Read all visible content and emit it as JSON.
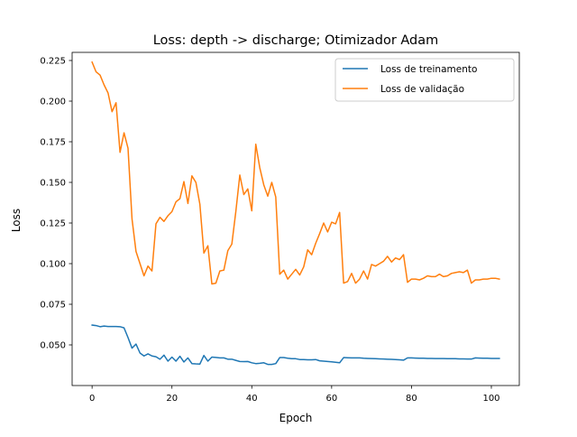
{
  "chart_data": {
    "type": "line",
    "title": "Loss: depth -> discharge; Otimizador Adam",
    "xlabel": "Epoch",
    "ylabel": "Loss",
    "xlim": [
      -5,
      107
    ],
    "ylim": [
      0.025,
      0.23
    ],
    "x_ticks": [
      0,
      20,
      40,
      60,
      80,
      100
    ],
    "y_ticks": [
      0.05,
      0.075,
      0.1,
      0.125,
      0.15,
      0.175,
      0.2,
      0.225
    ],
    "y_tick_format_decimals": 3,
    "grid": false,
    "legend_position": "top-right",
    "series": [
      {
        "name": "Loss de treinamento",
        "color": "#1f77b4",
        "x": [
          0,
          1,
          2,
          3,
          4,
          5,
          6,
          7,
          8,
          9,
          10,
          11,
          12,
          13,
          14,
          15,
          16,
          17,
          18,
          19,
          20,
          21,
          22,
          23,
          24,
          25,
          26,
          27,
          28,
          29,
          30,
          31,
          32,
          33,
          34,
          35,
          36,
          37,
          38,
          39,
          40,
          41,
          42,
          43,
          44,
          45,
          46,
          47,
          48,
          49,
          50,
          51,
          52,
          53,
          54,
          55,
          56,
          57,
          58,
          59,
          60,
          61,
          62,
          63,
          64,
          65,
          66,
          67,
          68,
          69,
          70,
          71,
          72,
          73,
          74,
          75,
          76,
          77,
          78,
          79,
          80,
          81,
          82,
          83,
          84,
          85,
          86,
          87,
          88,
          89,
          90,
          91,
          92,
          93,
          94,
          95,
          96,
          97,
          98,
          99,
          100,
          101,
          102
        ],
        "y": [
          0.0622,
          0.0619,
          0.0612,
          0.0616,
          0.0613,
          0.0613,
          0.0613,
          0.0612,
          0.0605,
          0.0545,
          0.048,
          0.0505,
          0.045,
          0.0432,
          0.0445,
          0.0432,
          0.0427,
          0.0412,
          0.0437,
          0.04,
          0.0425,
          0.04,
          0.043,
          0.0395,
          0.042,
          0.0385,
          0.0383,
          0.0382,
          0.0435,
          0.04,
          0.0425,
          0.0423,
          0.042,
          0.042,
          0.0412,
          0.0412,
          0.0405,
          0.0398,
          0.0397,
          0.0398,
          0.039,
          0.0385,
          0.0387,
          0.039,
          0.038,
          0.038,
          0.0385,
          0.0422,
          0.0422,
          0.0418,
          0.0415,
          0.0415,
          0.041,
          0.041,
          0.0408,
          0.0408,
          0.041,
          0.0402,
          0.04,
          0.0398,
          0.0396,
          0.0393,
          0.039,
          0.0422,
          0.0421,
          0.042,
          0.042,
          0.042,
          0.0418,
          0.0417,
          0.0416,
          0.0415,
          0.0414,
          0.0413,
          0.0412,
          0.0411,
          0.041,
          0.0408,
          0.0406,
          0.042,
          0.042,
          0.0419,
          0.0418,
          0.0418,
          0.0417,
          0.0417,
          0.0416,
          0.0416,
          0.0416,
          0.0415,
          0.0415,
          0.0415,
          0.0414,
          0.0414,
          0.0413,
          0.0413,
          0.042,
          0.0419,
          0.0418,
          0.0418,
          0.0417,
          0.0417,
          0.0417
        ]
      },
      {
        "name": "Loss de validação",
        "color": "#ff7f0e",
        "x": [
          0,
          1,
          2,
          3,
          4,
          5,
          6,
          7,
          8,
          9,
          10,
          11,
          12,
          13,
          14,
          15,
          16,
          17,
          18,
          19,
          20,
          21,
          22,
          23,
          24,
          25,
          26,
          27,
          28,
          29,
          30,
          31,
          32,
          33,
          34,
          35,
          36,
          37,
          38,
          39,
          40,
          41,
          42,
          43,
          44,
          45,
          46,
          47,
          48,
          49,
          50,
          51,
          52,
          53,
          54,
          55,
          56,
          57,
          58,
          59,
          60,
          61,
          62,
          63,
          64,
          65,
          66,
          67,
          68,
          69,
          70,
          71,
          72,
          73,
          74,
          75,
          76,
          77,
          78,
          79,
          80,
          81,
          82,
          83,
          84,
          85,
          86,
          87,
          88,
          89,
          90,
          91,
          92,
          93,
          94,
          95,
          96,
          97,
          98,
          99,
          100,
          101,
          102
        ],
        "y": [
          0.224,
          0.218,
          0.216,
          0.21,
          0.205,
          0.1935,
          0.199,
          0.1685,
          0.1805,
          0.171,
          0.1275,
          0.1075,
          0.1,
          0.0925,
          0.0985,
          0.0955,
          0.1245,
          0.1285,
          0.126,
          0.1295,
          0.132,
          0.138,
          0.14,
          0.1505,
          0.137,
          0.154,
          0.15,
          0.1365,
          0.1065,
          0.111,
          0.0875,
          0.088,
          0.0955,
          0.096,
          0.108,
          0.112,
          0.132,
          0.1545,
          0.1425,
          0.146,
          0.1325,
          0.1735,
          0.159,
          0.1485,
          0.1415,
          0.15,
          0.141,
          0.0935,
          0.096,
          0.0905,
          0.0935,
          0.0965,
          0.093,
          0.098,
          0.1085,
          0.1055,
          0.1125,
          0.1185,
          0.125,
          0.1195,
          0.1255,
          0.1245,
          0.1315,
          0.088,
          0.089,
          0.094,
          0.088,
          0.0905,
          0.0955,
          0.0905,
          0.0995,
          0.0985,
          0.1,
          0.1015,
          0.1045,
          0.101,
          0.1035,
          0.1025,
          0.1055,
          0.0885,
          0.0905,
          0.0905,
          0.09,
          0.091,
          0.0925,
          0.092,
          0.092,
          0.0935,
          0.092,
          0.0925,
          0.094,
          0.0945,
          0.095,
          0.0945,
          0.096,
          0.088,
          0.09,
          0.09,
          0.0905,
          0.0905,
          0.091,
          0.091,
          0.0905
        ]
      }
    ]
  }
}
